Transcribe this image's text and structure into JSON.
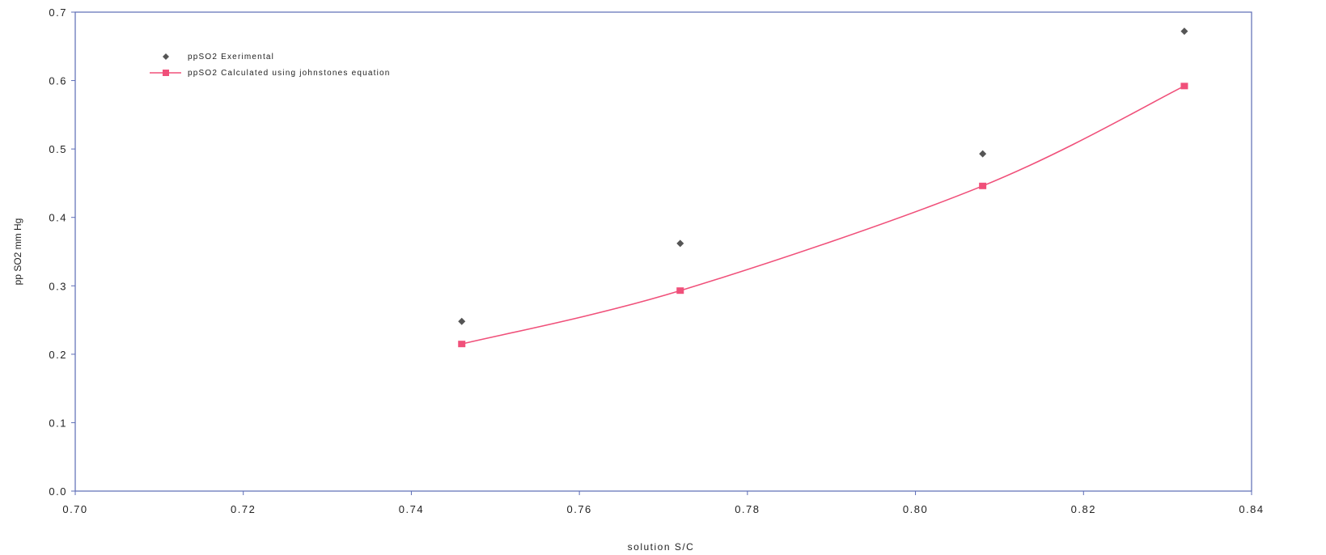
{
  "chart_data": {
    "type": "line",
    "title": "",
    "xlabel": "solution S/C",
    "ylabel": "pp SO2 mm Hg",
    "xlim": [
      0.7,
      0.84
    ],
    "ylim": [
      0.0,
      0.7
    ],
    "x_ticks": [
      "0.70",
      "0.72",
      "0.74",
      "0.76",
      "0.78",
      "0.80",
      "0.82",
      "0.84"
    ],
    "y_ticks": [
      "0.0",
      "0.1",
      "0.2",
      "0.3",
      "0.4",
      "0.5",
      "0.6",
      "0.7"
    ],
    "grid": false,
    "legend_position": "top-left",
    "series": [
      {
        "name": "ppSO2 Exerimental",
        "style": "markers",
        "marker": "diamond",
        "color": "#555555",
        "x": [
          0.746,
          0.772,
          0.808,
          0.832
        ],
        "y": [
          0.248,
          0.362,
          0.493,
          0.672
        ]
      },
      {
        "name": "ppSO2 Calculated using johnstones equation",
        "style": "line+markers",
        "marker": "square",
        "color": "#f0507a",
        "x": [
          0.746,
          0.772,
          0.808,
          0.832
        ],
        "y": [
          0.215,
          0.293,
          0.446,
          0.592
        ]
      }
    ]
  }
}
